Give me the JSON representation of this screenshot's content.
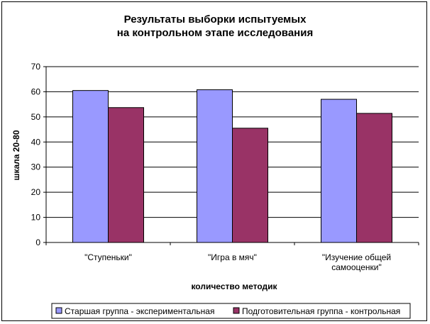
{
  "chart_data": {
    "type": "bar",
    "title_lines": [
      "Результаты выборки испытуемых",
      "на контрольном этапе исследования"
    ],
    "xlabel": "количество методик",
    "ylabel": "шкала 20-80",
    "ylim": [
      0,
      70
    ],
    "yticks": [
      0,
      10,
      20,
      30,
      40,
      50,
      60,
      70
    ],
    "grid": true,
    "legend_position": "bottom",
    "categories": [
      [
        "\"Ступеньки\""
      ],
      [
        "\"Игра в мяч\""
      ],
      [
        "\"Изучение общей",
        "самооценки\""
      ]
    ],
    "series": [
      {
        "name": "Старшая группа - экспериментальная",
        "color": "#9999FF",
        "values": [
          60.5,
          60.8,
          57.0
        ]
      },
      {
        "name": "Подготовительная группа - контрольная",
        "color": "#993366",
        "values": [
          53.7,
          45.5,
          51.4
        ]
      }
    ]
  }
}
